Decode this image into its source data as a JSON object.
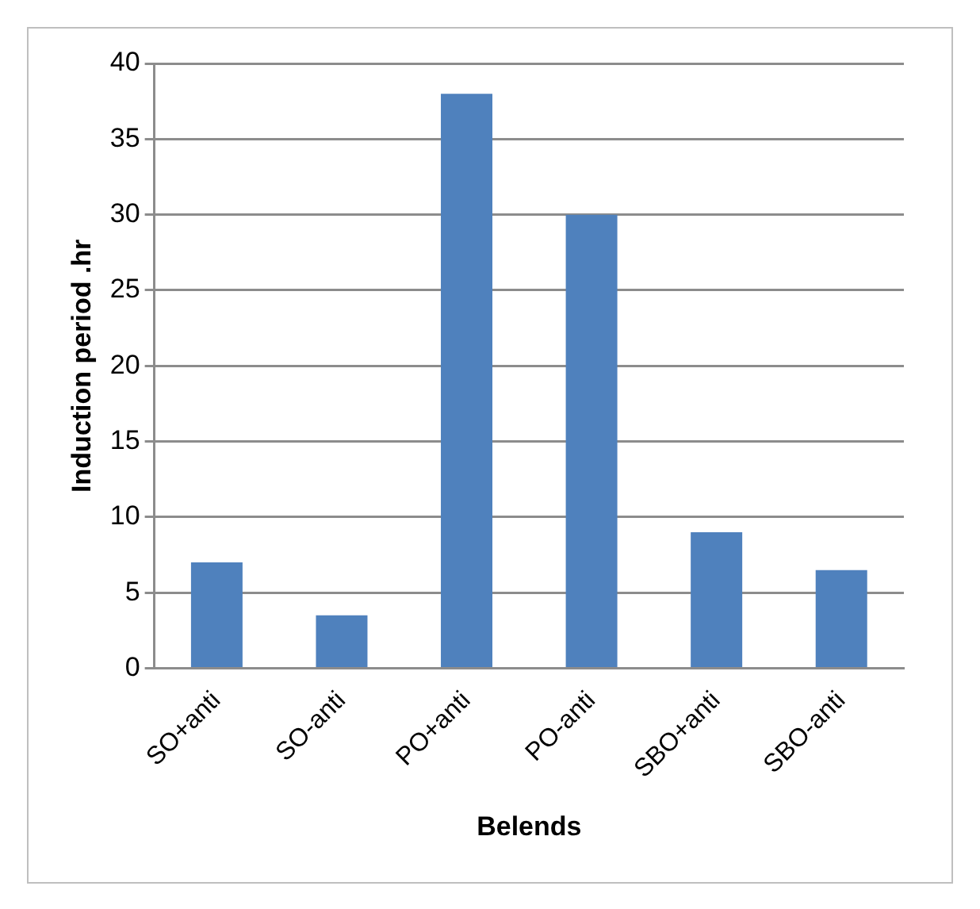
{
  "chart_data": {
    "type": "bar",
    "xlabel": "Belends",
    "ylabel": "Induction period .hr",
    "categories": [
      "SO+anti",
      "SO-anti",
      "PO+anti",
      "PO-anti",
      "SBO+anti",
      "SBO-anti"
    ],
    "values": [
      7,
      3.5,
      38,
      30,
      9,
      6.5
    ],
    "color": "#4f81bd",
    "ylim": [
      0,
      40
    ],
    "yticks": [
      0,
      5,
      10,
      15,
      20,
      25,
      30,
      35,
      40
    ],
    "grid": "y",
    "legend": false
  }
}
